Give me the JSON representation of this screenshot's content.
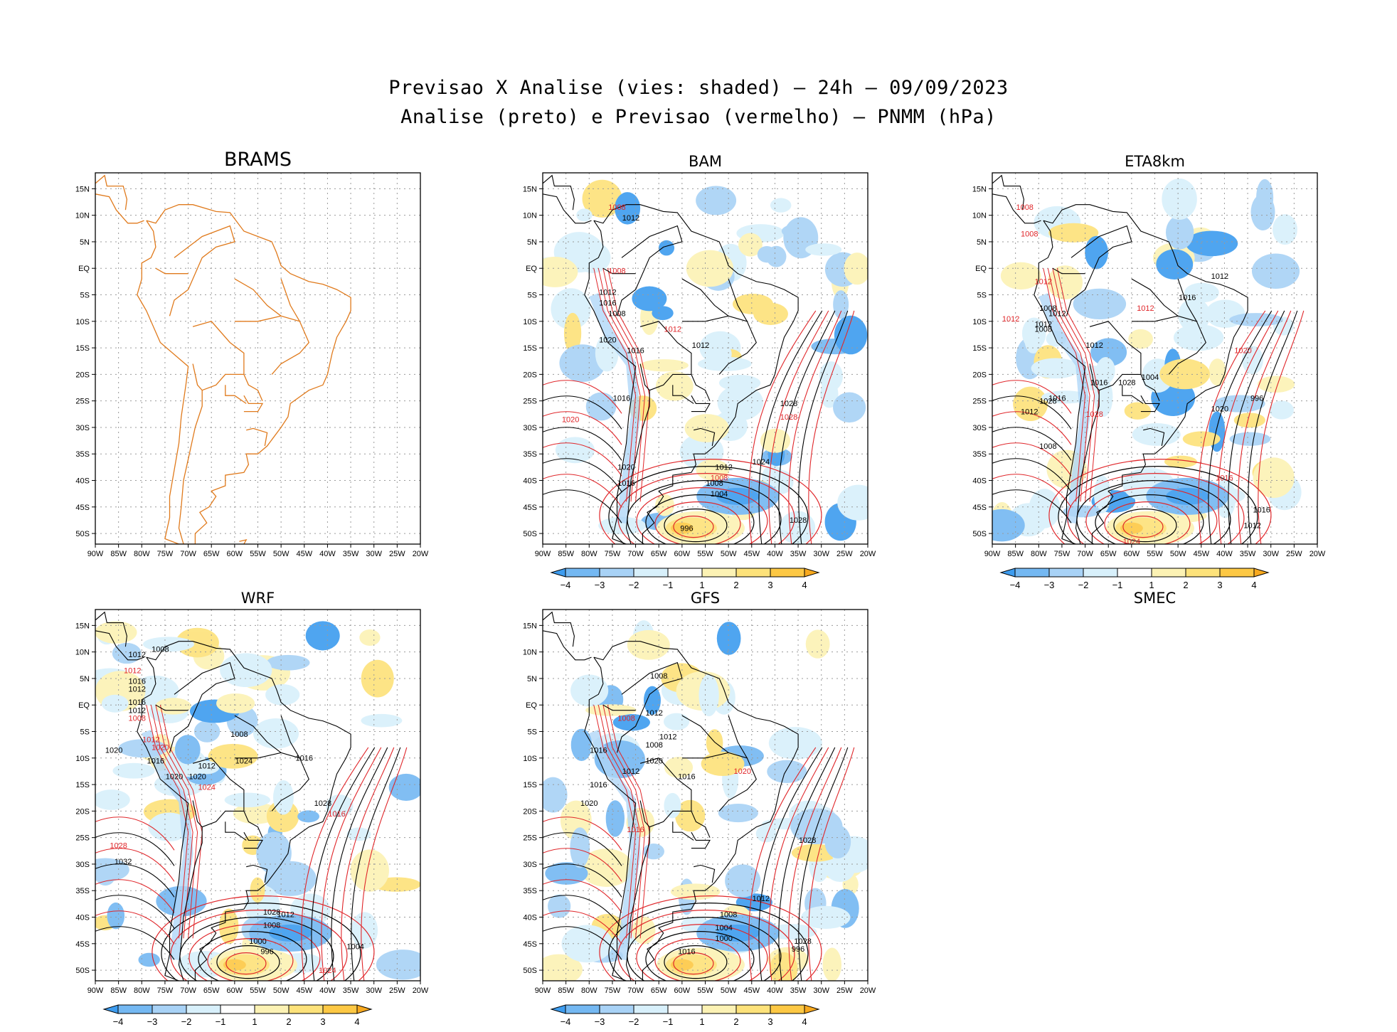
{
  "figure": {
    "title_line1": "Previsao X Analise (vies: shaded) – 24h – 09/09/2023",
    "title_line2": "Analise (preto) e Previsao (vermelho) – PNMM (hPa)"
  },
  "axes": {
    "lat_labels": [
      "15N",
      "10N",
      "5N",
      "EQ",
      "5S",
      "10S",
      "15S",
      "20S",
      "25S",
      "30S",
      "35S",
      "40S",
      "45S",
      "50S"
    ],
    "lon_labels": [
      "90W",
      "85W",
      "80W",
      "75W",
      "70W",
      "65W",
      "60W",
      "55W",
      "50W",
      "45W",
      "40W",
      "35W",
      "30W",
      "25W",
      "20W"
    ]
  },
  "colorbar": {
    "labels": [
      "−4",
      "−3",
      "−2",
      "−1",
      "1",
      "2",
      "3",
      "4"
    ],
    "colors": [
      "#3d9cef",
      "#74b8f2",
      "#a8d2f6",
      "#d8f0fb",
      "#ffffff",
      "#fcf2b4",
      "#fde27a",
      "#fdc844",
      "#f8a91e"
    ]
  },
  "contour_colors": {
    "analysis": "#000000",
    "forecast": "#e0262a",
    "border": "#e07a1c"
  },
  "panels": [
    {
      "name": "BRAMS",
      "shaded": false,
      "colorbar": false,
      "contour_labels": []
    },
    {
      "name": "BAM",
      "shaded": true,
      "colorbar": true,
      "contour_labels": [
        {
          "text": "1008",
          "color": "red"
        },
        {
          "text": "1012",
          "color": "black"
        },
        {
          "text": "1008",
          "color": "red"
        },
        {
          "text": "1012",
          "color": "black"
        },
        {
          "text": "1016",
          "color": "black"
        },
        {
          "text": "1008",
          "color": "black"
        },
        {
          "text": "1020",
          "color": "black"
        },
        {
          "text": "1016",
          "color": "black"
        },
        {
          "text": "1012",
          "color": "red"
        },
        {
          "text": "1012",
          "color": "black"
        },
        {
          "text": "1020",
          "color": "red"
        },
        {
          "text": "1028",
          "color": "black"
        },
        {
          "text": "1028",
          "color": "red"
        },
        {
          "text": "1016",
          "color": "black"
        },
        {
          "text": "1012",
          "color": "black"
        },
        {
          "text": "1024",
          "color": "black"
        },
        {
          "text": "1008",
          "color": "black"
        },
        {
          "text": "1008",
          "color": "red"
        },
        {
          "text": "1004",
          "color": "black"
        },
        {
          "text": "1020",
          "color": "black"
        },
        {
          "text": "1016",
          "color": "black"
        },
        {
          "text": "1028",
          "color": "black"
        },
        {
          "text": "996",
          "color": "black"
        }
      ]
    },
    {
      "name": "ETA8km",
      "shaded": true,
      "colorbar": true,
      "contour_labels": [
        {
          "text": "1008",
          "color": "red"
        },
        {
          "text": "1012",
          "color": "red"
        },
        {
          "text": "1012",
          "color": "black"
        },
        {
          "text": "1008",
          "color": "red"
        },
        {
          "text": "1012",
          "color": "red"
        },
        {
          "text": "1016",
          "color": "black"
        },
        {
          "text": "1008",
          "color": "black"
        },
        {
          "text": "1012",
          "color": "black"
        },
        {
          "text": "1012",
          "color": "black"
        },
        {
          "text": "1008",
          "color": "black"
        },
        {
          "text": "1012",
          "color": "red"
        },
        {
          "text": "1020",
          "color": "red"
        },
        {
          "text": "1016",
          "color": "black"
        },
        {
          "text": "1012",
          "color": "black"
        },
        {
          "text": "1016",
          "color": "black"
        },
        {
          "text": "1028",
          "color": "black"
        },
        {
          "text": "1020",
          "color": "black"
        },
        {
          "text": "1016",
          "color": "red"
        },
        {
          "text": "1012",
          "color": "black"
        },
        {
          "text": "1008",
          "color": "black"
        },
        {
          "text": "1004",
          "color": "black"
        },
        {
          "text": "1028",
          "color": "red"
        },
        {
          "text": "1028",
          "color": "black"
        },
        {
          "text": "996",
          "color": "black"
        },
        {
          "text": "1024",
          "color": "red"
        },
        {
          "text": "1016",
          "color": "black"
        },
        {
          "text": "1012",
          "color": "black"
        }
      ]
    },
    {
      "name": "WRF",
      "shaded": true,
      "colorbar": true,
      "contour_labels": [
        {
          "text": "1008",
          "color": "black"
        },
        {
          "text": "1012",
          "color": "black"
        },
        {
          "text": "1012",
          "color": "red"
        },
        {
          "text": "1016",
          "color": "black"
        },
        {
          "text": "1012",
          "color": "black"
        },
        {
          "text": "1016",
          "color": "black"
        },
        {
          "text": "1012",
          "color": "black"
        },
        {
          "text": "1008",
          "color": "red"
        },
        {
          "text": "1012",
          "color": "red"
        },
        {
          "text": "1020",
          "color": "red"
        },
        {
          "text": "1008",
          "color": "black"
        },
        {
          "text": "1020",
          "color": "black"
        },
        {
          "text": "1016",
          "color": "black"
        },
        {
          "text": "1012",
          "color": "black"
        },
        {
          "text": "1020",
          "color": "black"
        },
        {
          "text": "1024",
          "color": "red"
        },
        {
          "text": "1024",
          "color": "black"
        },
        {
          "text": "1016",
          "color": "black"
        },
        {
          "text": "1020",
          "color": "black"
        },
        {
          "text": "1028",
          "color": "black"
        },
        {
          "text": "1028",
          "color": "red"
        },
        {
          "text": "1032",
          "color": "black"
        },
        {
          "text": "1012",
          "color": "black"
        },
        {
          "text": "1008",
          "color": "black"
        },
        {
          "text": "1000",
          "color": "black"
        },
        {
          "text": "1028",
          "color": "black"
        },
        {
          "text": "996",
          "color": "black"
        },
        {
          "text": "1004",
          "color": "black"
        },
        {
          "text": "1024",
          "color": "red"
        },
        {
          "text": "1016",
          "color": "red"
        }
      ]
    },
    {
      "name": "GFS",
      "shaded": true,
      "colorbar": true,
      "contour_labels": [
        {
          "text": "1008",
          "color": "black"
        },
        {
          "text": "1012",
          "color": "black"
        },
        {
          "text": "1008",
          "color": "red"
        },
        {
          "text": "1012",
          "color": "black"
        },
        {
          "text": "1008",
          "color": "black"
        },
        {
          "text": "1016",
          "color": "black"
        },
        {
          "text": "1020",
          "color": "black"
        },
        {
          "text": "1012",
          "color": "black"
        },
        {
          "text": "1016",
          "color": "black"
        },
        {
          "text": "1016",
          "color": "black"
        },
        {
          "text": "1020",
          "color": "black"
        },
        {
          "text": "1016",
          "color": "red"
        },
        {
          "text": "1028",
          "color": "black"
        },
        {
          "text": "1012",
          "color": "black"
        },
        {
          "text": "1008",
          "color": "black"
        },
        {
          "text": "1004",
          "color": "black"
        },
        {
          "text": "1000",
          "color": "black"
        },
        {
          "text": "1028",
          "color": "black"
        },
        {
          "text": "996",
          "color": "black"
        },
        {
          "text": "1016",
          "color": "black"
        },
        {
          "text": "1020",
          "color": "red"
        }
      ]
    },
    {
      "name": "SMEC",
      "shaded": false,
      "colorbar": false,
      "contour_labels": []
    }
  ]
}
